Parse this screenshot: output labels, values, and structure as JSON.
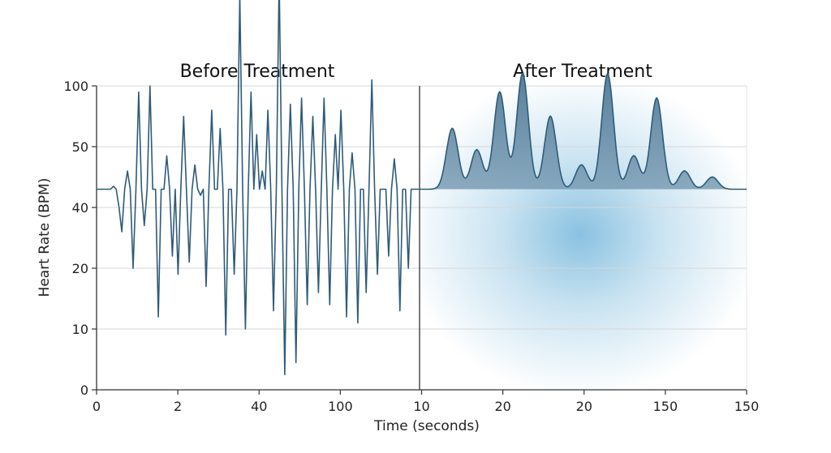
{
  "chart_data": {
    "type": "line",
    "title": "",
    "xlabel": "Time (seconds)",
    "ylabel": "Heart Rate (BPM)",
    "y_scale": "categorical ticks, unevenly spaced values",
    "yticks": [
      "0",
      "10",
      "20",
      "40",
      "50",
      "100"
    ],
    "xticks": [
      "0",
      "2",
      "40",
      "100",
      "10",
      "20",
      "20",
      "150",
      "150"
    ],
    "grid": "horizontal",
    "legend": "none",
    "colors": {
      "line": "#2f5b78",
      "fill": "#4f7895",
      "glow": "#2a8fc8",
      "grid": "#d7d7d7",
      "axis": "#333333"
    },
    "panels": [
      {
        "title": "Before Treatment",
        "style": "line",
        "baseline_y": 3.3,
        "series_y": [
          3.3,
          3.3,
          3.3,
          3.3,
          3.3,
          3.3,
          3.35,
          3.3,
          3.0,
          2.6,
          3.3,
          3.6,
          3.3,
          2.0,
          3.3,
          4.9,
          3.3,
          2.7,
          3.3,
          5.0,
          3.3,
          3.3,
          1.2,
          3.3,
          3.3,
          3.85,
          3.3,
          2.2,
          3.3,
          1.9,
          3.3,
          4.5,
          3.3,
          2.1,
          3.3,
          3.7,
          3.3,
          3.2,
          3.3,
          1.7,
          3.3,
          4.6,
          3.3,
          3.3,
          4.3,
          3.3,
          0.9,
          3.3,
          3.3,
          1.9,
          3.3,
          6.5,
          3.3,
          1.0,
          3.3,
          4.9,
          3.3,
          4.2,
          3.3,
          3.6,
          3.3,
          4.6,
          3.3,
          1.3,
          3.3,
          6.8,
          3.3,
          0.25,
          3.3,
          4.7,
          3.3,
          0.45,
          3.3,
          4.8,
          3.3,
          1.4,
          3.3,
          4.5,
          3.3,
          1.6,
          3.3,
          4.8,
          3.3,
          1.4,
          3.3,
          4.2,
          3.3,
          4.6,
          3.3,
          1.2,
          3.3,
          3.9,
          3.3,
          1.1,
          3.3,
          3.3,
          1.6,
          3.3,
          5.1,
          3.3,
          1.9,
          3.3,
          3.3,
          3.3,
          2.2,
          3.3,
          3.8,
          3.3,
          1.3,
          3.3,
          3.3,
          2.0,
          3.3,
          3.3,
          3.3,
          3.3
        ]
      },
      {
        "title": "After Treatment",
        "style": "filled peaks",
        "baseline_y": 3.3,
        "peaks": [
          {
            "x": 0.1,
            "y": 4.3
          },
          {
            "x": 0.175,
            "y": 3.95
          },
          {
            "x": 0.245,
            "y": 4.9
          },
          {
            "x": 0.315,
            "y": 5.2
          },
          {
            "x": 0.4,
            "y": 4.5
          },
          {
            "x": 0.495,
            "y": 3.7
          },
          {
            "x": 0.575,
            "y": 5.2
          },
          {
            "x": 0.655,
            "y": 3.85
          },
          {
            "x": 0.725,
            "y": 4.8
          },
          {
            "x": 0.81,
            "y": 3.6
          },
          {
            "x": 0.895,
            "y": 3.5
          }
        ]
      }
    ]
  }
}
